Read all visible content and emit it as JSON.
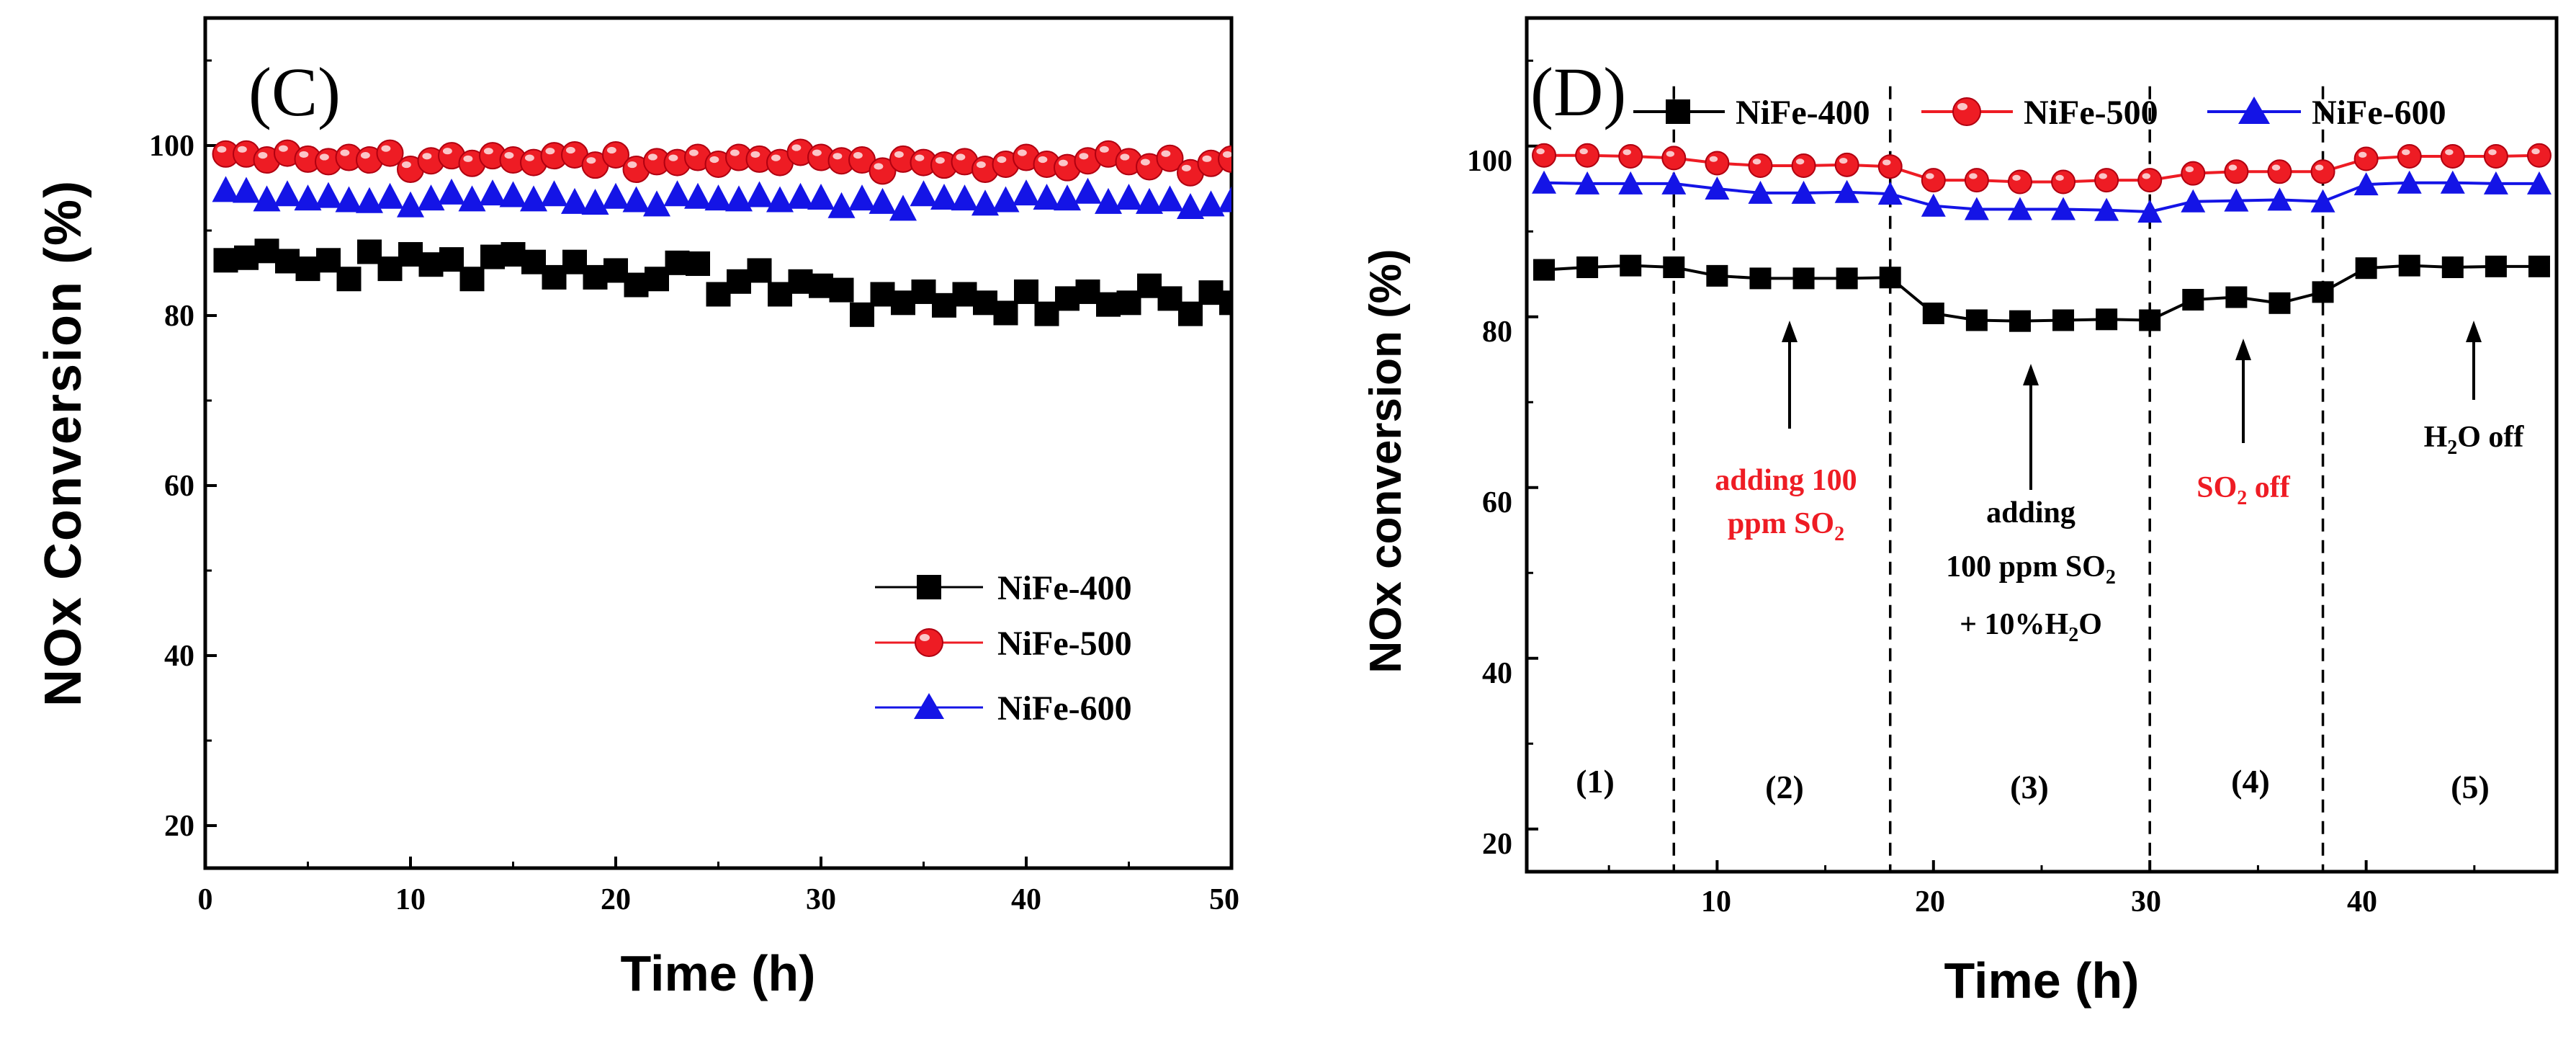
{
  "colors": {
    "NiFe-400": "#000000",
    "NiFe-500": "#ee1c24",
    "NiFe-600": "#1414e6"
  },
  "chart_data": [
    {
      "type": "scatter",
      "panel_label": "(C)",
      "xlabel": "Time (h)",
      "ylabel": "NOx  Conversion (%)",
      "xlim": [
        0,
        50
      ],
      "ylim": [
        15,
        115
      ],
      "xticks": [
        "0",
        "10",
        "20",
        "30",
        "40",
        "50"
      ],
      "yticks": [
        "20",
        "40",
        "60",
        "80",
        "100"
      ],
      "legend_position": "lower-right",
      "legend": [
        "NiFe-400",
        "NiFe-500",
        "NiFe-600"
      ],
      "series": [
        {
          "name": "NiFe-400",
          "marker": "square",
          "x": [
            1,
            2,
            3,
            4,
            5,
            6,
            7,
            8,
            9,
            10,
            11,
            12,
            13,
            14,
            15,
            16,
            17,
            18,
            19,
            20,
            21,
            22,
            23,
            24,
            25,
            26,
            27,
            28,
            29,
            30,
            31,
            32,
            33,
            34,
            35,
            36,
            37,
            38,
            39,
            40,
            41,
            42,
            43,
            44,
            45,
            46,
            47,
            48,
            49,
            50
          ],
          "values": [
            86.5,
            86.8,
            87.6,
            86.4,
            85.5,
            86.5,
            84.3,
            87.5,
            85.5,
            87.2,
            86.0,
            86.6,
            84.3,
            86.9,
            87.2,
            86.3,
            84.5,
            86.3,
            84.5,
            85.3,
            83.6,
            84.3,
            86.2,
            86.1,
            82.5,
            84.0,
            85.3,
            82.5,
            84.0,
            83.5,
            83.0,
            80.1,
            82.5,
            81.5,
            82.8,
            81.2,
            82.5,
            81.5,
            80.3,
            82.8,
            80.2,
            82.0,
            82.8,
            81.3,
            81.5,
            83.5,
            82.0,
            80.2,
            82.7,
            81.5
          ]
        },
        {
          "name": "NiFe-500",
          "marker": "circle",
          "x": [
            1,
            2,
            3,
            4,
            5,
            6,
            7,
            8,
            9,
            10,
            11,
            12,
            13,
            14,
            15,
            16,
            17,
            18,
            19,
            20,
            21,
            22,
            23,
            24,
            25,
            26,
            27,
            28,
            29,
            30,
            31,
            32,
            33,
            34,
            35,
            36,
            37,
            38,
            39,
            40,
            41,
            42,
            43,
            44,
            45,
            46,
            47,
            48,
            49,
            50
          ],
          "values": [
            99.0,
            99.0,
            98.3,
            99.1,
            98.4,
            98.1,
            98.6,
            98.3,
            99.1,
            97.2,
            98.2,
            98.8,
            97.9,
            98.8,
            98.3,
            98.0,
            98.8,
            98.9,
            97.7,
            98.9,
            97.2,
            98.1,
            98.0,
            98.6,
            97.8,
            98.6,
            98.4,
            98.0,
            99.2,
            98.6,
            98.2,
            98.3,
            97.0,
            98.4,
            98.0,
            97.7,
            98.1,
            97.2,
            97.8,
            98.6,
            97.8,
            97.4,
            98.2,
            99.0,
            98.1,
            97.5,
            98.5,
            96.8,
            97.9,
            98.4
          ]
        },
        {
          "name": "NiFe-600",
          "marker": "triangle",
          "x": [
            1,
            2,
            3,
            4,
            5,
            6,
            7,
            8,
            9,
            10,
            11,
            12,
            13,
            14,
            15,
            16,
            17,
            18,
            19,
            20,
            21,
            22,
            23,
            24,
            25,
            26,
            27,
            28,
            29,
            30,
            31,
            32,
            33,
            34,
            35,
            36,
            37,
            38,
            39,
            40,
            41,
            42,
            43,
            44,
            45,
            46,
            47,
            48,
            49,
            50
          ],
          "values": [
            94.8,
            94.7,
            93.7,
            94.3,
            93.8,
            94.1,
            93.6,
            93.5,
            94.0,
            93.0,
            93.8,
            94.5,
            93.7,
            94.4,
            94.2,
            93.7,
            94.3,
            93.4,
            93.3,
            94.0,
            93.6,
            93.1,
            94.3,
            94.0,
            93.8,
            93.7,
            94.2,
            93.6,
            94.0,
            93.9,
            92.9,
            93.8,
            93.4,
            92.6,
            94.3,
            93.9,
            93.8,
            93.2,
            93.6,
            94.4,
            93.9,
            93.8,
            94.6,
            93.4,
            93.9,
            93.4,
            93.7,
            92.8,
            93.1,
            93.6
          ]
        }
      ]
    },
    {
      "type": "line",
      "panel_label": "(D)",
      "xlabel": "Time (h)",
      "ylabel": "NOx  conversion (%)",
      "xlim": [
        1.2,
        48.8
      ],
      "ylim": [
        15,
        115
      ],
      "xticks": [
        "10",
        "20",
        "30",
        "40"
      ],
      "yticks": [
        "20",
        "40",
        "60",
        "80",
        "100"
      ],
      "legend_position": "top",
      "legend": [
        "NiFe-400",
        "NiFe-500",
        "NiFe-600"
      ],
      "series": [
        {
          "name": "NiFe-400",
          "marker": "square",
          "x": [
            2,
            4,
            6,
            8,
            10,
            12,
            14,
            16,
            18,
            20,
            22,
            24,
            26,
            28,
            30,
            32,
            34,
            36,
            38,
            40,
            42,
            44,
            46,
            48
          ],
          "values": [
            85.5,
            85.8,
            86.0,
            85.8,
            84.8,
            84.5,
            84.5,
            84.5,
            84.6,
            80.4,
            79.6,
            79.5,
            79.6,
            79.7,
            79.6,
            82.0,
            82.3,
            81.6,
            82.9,
            85.7,
            86.0,
            85.8,
            85.9,
            85.9
          ]
        },
        {
          "name": "NiFe-500",
          "marker": "circle",
          "x": [
            2,
            4,
            6,
            8,
            10,
            12,
            14,
            16,
            18,
            20,
            22,
            24,
            26,
            28,
            30,
            32,
            34,
            36,
            38,
            40,
            42,
            44,
            46,
            48
          ],
          "values": [
            98.9,
            98.9,
            98.8,
            98.6,
            98.0,
            97.7,
            97.7,
            97.8,
            97.6,
            96.0,
            96.0,
            95.8,
            95.8,
            96.0,
            96.0,
            96.8,
            97.0,
            97.0,
            97.0,
            98.5,
            98.8,
            98.8,
            98.8,
            98.9
          ]
        },
        {
          "name": "NiFe-600",
          "marker": "triangle",
          "x": [
            2,
            4,
            6,
            8,
            10,
            12,
            14,
            16,
            18,
            20,
            22,
            24,
            26,
            28,
            30,
            32,
            34,
            36,
            38,
            40,
            42,
            44,
            46,
            48
          ],
          "values": [
            95.7,
            95.6,
            95.6,
            95.6,
            95.0,
            94.5,
            94.5,
            94.6,
            94.4,
            93.0,
            92.6,
            92.6,
            92.6,
            92.5,
            92.3,
            93.5,
            93.6,
            93.7,
            93.5,
            95.5,
            95.7,
            95.7,
            95.6,
            95.6
          ]
        }
      ],
      "dividers_x": [
        8,
        18,
        30,
        38
      ],
      "stages": [
        "(1)",
        "(2)",
        "(3)",
        "(4)",
        "(5)"
      ],
      "annotations": {
        "a2_line1": "adding 100",
        "a2_line2_main": "ppm SO",
        "a2_line2_sub": "2",
        "a3_line1": "adding",
        "a3_line2_main": "100 ppm SO",
        "a3_line2_sub": "2",
        "a3_line3_pre": "+ 10%H",
        "a3_line3_sub": "2",
        "a3_line3_post": "O",
        "a4_main": "SO",
        "a4_sub": "2",
        "a4_post": " off",
        "a5_main": "H",
        "a5_sub": "2",
        "a5_post": "O off"
      }
    }
  ]
}
